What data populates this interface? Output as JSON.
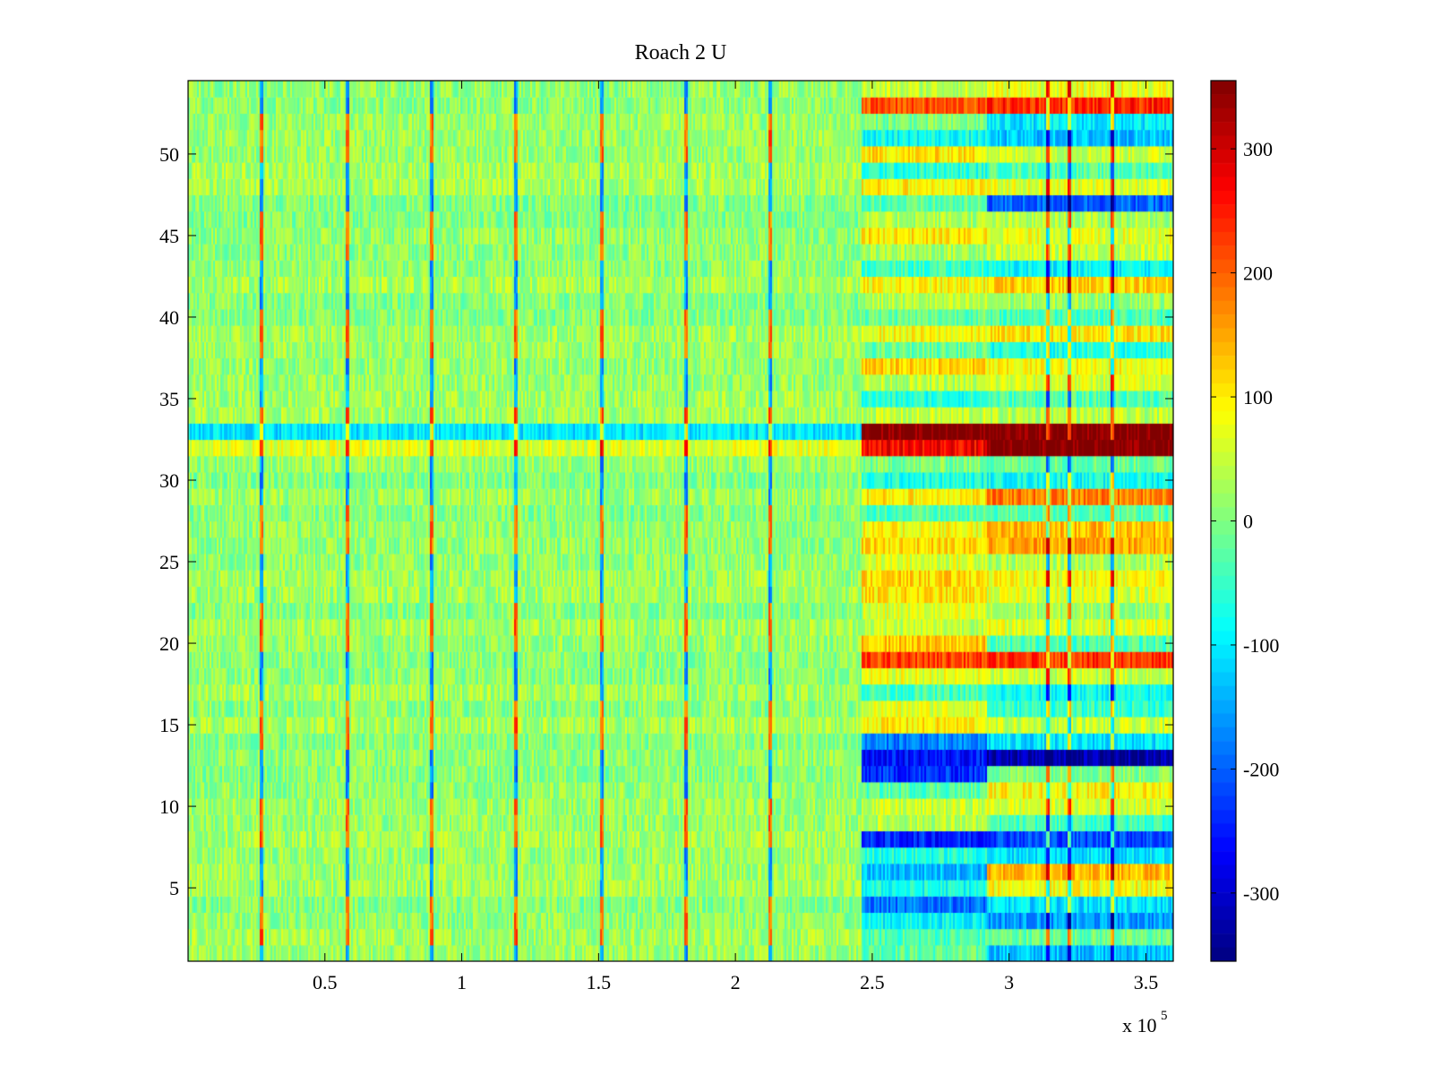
{
  "chart_data": {
    "type": "heatmap",
    "title": "Roach 2 U",
    "xlabel": "",
    "ylabel": "",
    "x_multiplier_label": "x 10",
    "x_multiplier_exponent": "5",
    "xlim": [
      0,
      3.6
    ],
    "ylim": [
      0.5,
      54.5
    ],
    "x_ticks": [
      0.5,
      1,
      1.5,
      2,
      2.5,
      3,
      3.5
    ],
    "x_tick_labels": [
      "0.5",
      "1",
      "1.5",
      "2",
      "2.5",
      "3",
      "3.5"
    ],
    "y_ticks": [
      5,
      10,
      15,
      20,
      25,
      30,
      35,
      40,
      45,
      50
    ],
    "y_tick_labels": [
      "5",
      "10",
      "15",
      "20",
      "25",
      "30",
      "35",
      "40",
      "45",
      "50"
    ],
    "rows": 54,
    "clim": [
      -355,
      355
    ],
    "colormap": "jet",
    "colorbar_ticks": [
      300,
      200,
      100,
      0,
      -100,
      -200,
      -300
    ],
    "colorbar_tick_labels": [
      "300",
      "200",
      "100",
      "0",
      "-100",
      "-200",
      "-300"
    ],
    "noise_amplitude": 45,
    "periodic_spikes_x": [
      0.27,
      0.58,
      0.89,
      1.2,
      1.51,
      1.82,
      2.13
    ],
    "late_spikes_x": [
      3.14,
      3.22,
      3.38
    ],
    "transition_x": [
      2.46,
      2.92
    ],
    "segment_breaks_x": [
      2.46,
      2.92,
      3.6
    ],
    "row_offsets": [
      {
        "row": 1,
        "segments": [
          0,
          -40,
          -150
        ]
      },
      {
        "row": 2,
        "segments": [
          0,
          -60,
          -40
        ]
      },
      {
        "row": 3,
        "segments": [
          0,
          -100,
          -170
        ]
      },
      {
        "row": 4,
        "segments": [
          0,
          -190,
          -110
        ]
      },
      {
        "row": 5,
        "segments": [
          0,
          -100,
          60
        ]
      },
      {
        "row": 6,
        "segments": [
          0,
          -160,
          110
        ]
      },
      {
        "row": 7,
        "segments": [
          0,
          -80,
          -120
        ]
      },
      {
        "row": 8,
        "segments": [
          0,
          -270,
          -240
        ]
      },
      {
        "row": 9,
        "segments": [
          0,
          20,
          -60
        ]
      },
      {
        "row": 10,
        "segments": [
          0,
          30,
          40
        ]
      },
      {
        "row": 11,
        "segments": [
          0,
          -40,
          80
        ]
      },
      {
        "row": 12,
        "segments": [
          0,
          -240,
          0
        ]
      },
      {
        "row": 13,
        "segments": [
          0,
          -270,
          -340
        ]
      },
      {
        "row": 14,
        "segments": [
          0,
          -180,
          -110
        ]
      },
      {
        "row": 15,
        "segments": [
          0,
          70,
          20
        ]
      },
      {
        "row": 16,
        "segments": [
          0,
          60,
          -60
        ]
      },
      {
        "row": 17,
        "segments": [
          0,
          -70,
          -110
        ]
      },
      {
        "row": 18,
        "segments": [
          0,
          60,
          40
        ]
      },
      {
        "row": 19,
        "segments": [
          0,
          210,
          220
        ]
      },
      {
        "row": 20,
        "segments": [
          0,
          110,
          -50
        ]
      },
      {
        "row": 21,
        "segments": [
          0,
          20,
          40
        ]
      },
      {
        "row": 22,
        "segments": [
          0,
          60,
          20
        ]
      },
      {
        "row": 23,
        "segments": [
          0,
          80,
          40
        ]
      },
      {
        "row": 24,
        "segments": [
          0,
          90,
          60
        ]
      },
      {
        "row": 25,
        "segments": [
          0,
          50,
          20
        ]
      },
      {
        "row": 26,
        "segments": [
          0,
          100,
          140
        ]
      },
      {
        "row": 27,
        "segments": [
          0,
          70,
          120
        ]
      },
      {
        "row": 28,
        "segments": [
          0,
          -40,
          -30
        ]
      },
      {
        "row": 29,
        "segments": [
          0,
          80,
          160
        ]
      },
      {
        "row": 30,
        "segments": [
          0,
          -70,
          -80
        ]
      },
      {
        "row": 31,
        "segments": [
          0,
          -20,
          -30
        ]
      },
      {
        "row": 32,
        "segments": [
          60,
          260,
          350
        ]
      },
      {
        "row": 33,
        "segments": [
          -110,
          350,
          350
        ]
      },
      {
        "row": 34,
        "segments": [
          0,
          20,
          10
        ]
      },
      {
        "row": 35,
        "segments": [
          0,
          -90,
          -60
        ]
      },
      {
        "row": 36,
        "segments": [
          0,
          20,
          40
        ]
      },
      {
        "row": 37,
        "segments": [
          0,
          100,
          70
        ]
      },
      {
        "row": 38,
        "segments": [
          0,
          -40,
          -90
        ]
      },
      {
        "row": 39,
        "segments": [
          0,
          60,
          80
        ]
      },
      {
        "row": 40,
        "segments": [
          0,
          -20,
          -40
        ]
      },
      {
        "row": 41,
        "segments": [
          0,
          30,
          20
        ]
      },
      {
        "row": 42,
        "segments": [
          0,
          60,
          90
        ]
      },
      {
        "row": 43,
        "segments": [
          0,
          -60,
          -100
        ]
      },
      {
        "row": 44,
        "segments": [
          0,
          20,
          40
        ]
      },
      {
        "row": 45,
        "segments": [
          0,
          90,
          60
        ]
      },
      {
        "row": 46,
        "segments": [
          0,
          30,
          30
        ]
      },
      {
        "row": 47,
        "segments": [
          0,
          -30,
          -200
        ]
      },
      {
        "row": 48,
        "segments": [
          0,
          70,
          40
        ]
      },
      {
        "row": 49,
        "segments": [
          0,
          -90,
          -60
        ]
      },
      {
        "row": 50,
        "segments": [
          0,
          90,
          40
        ]
      },
      {
        "row": 51,
        "segments": [
          0,
          -100,
          -150
        ]
      },
      {
        "row": 52,
        "segments": [
          0,
          -20,
          -120
        ]
      },
      {
        "row": 53,
        "segments": [
          0,
          200,
          230
        ]
      },
      {
        "row": 54,
        "segments": [
          0,
          30,
          60
        ]
      }
    ]
  }
}
